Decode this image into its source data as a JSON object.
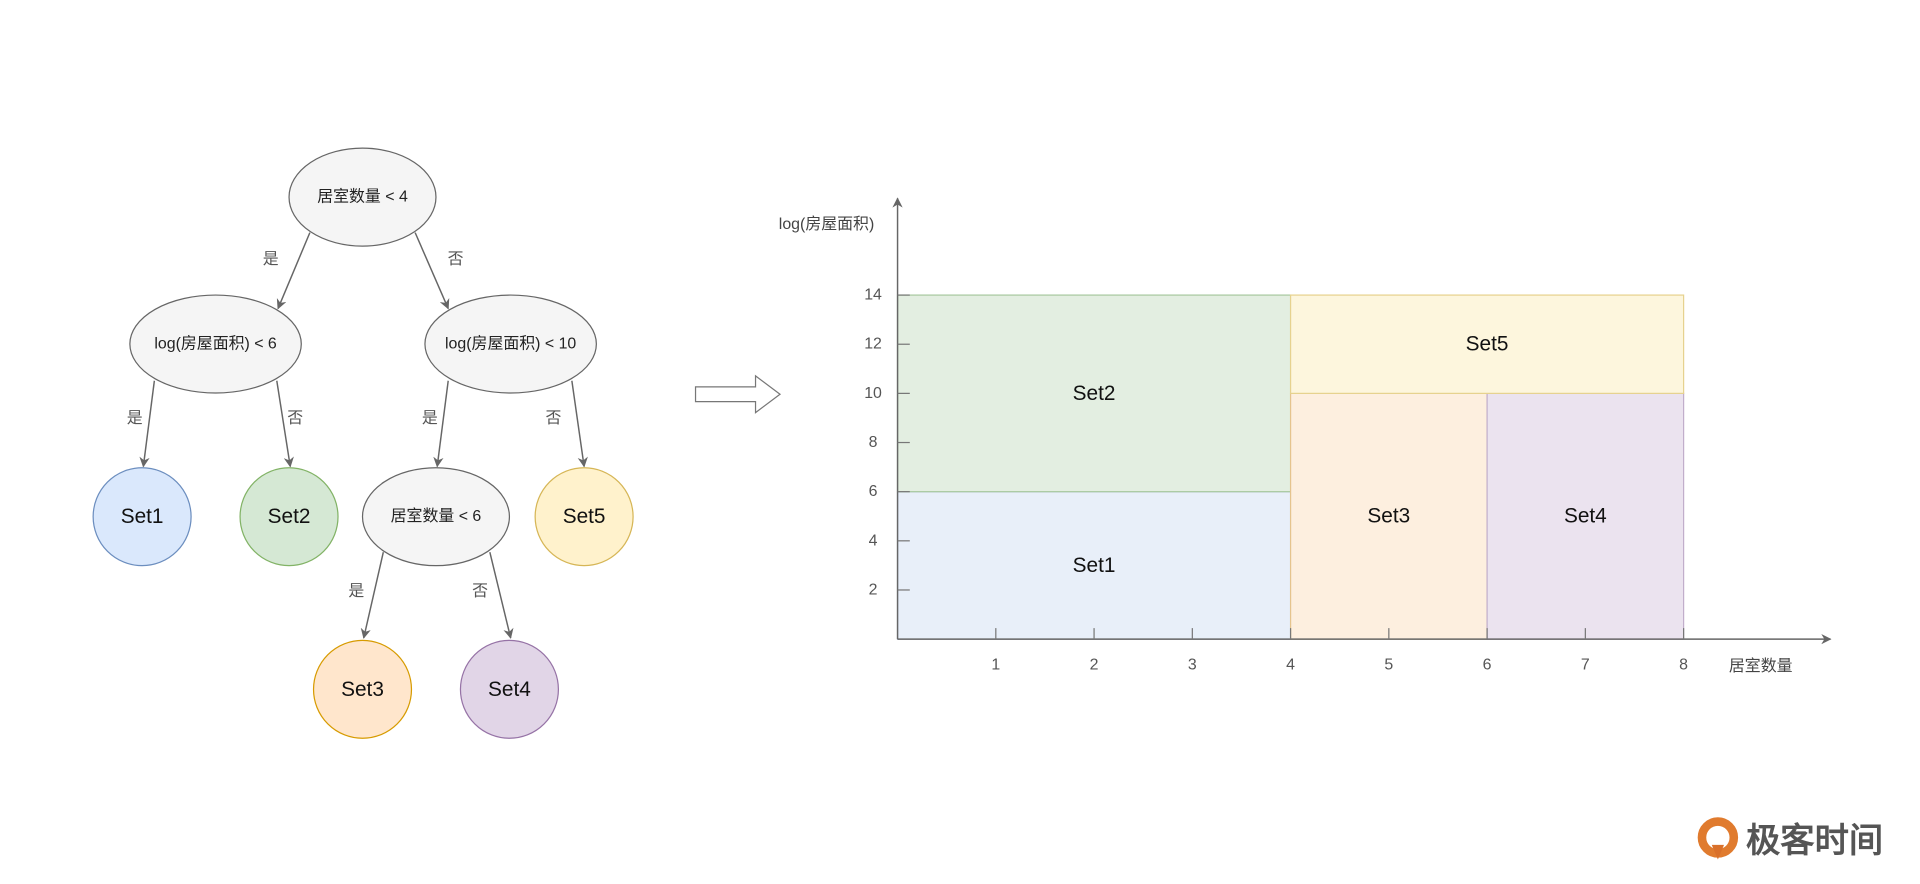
{
  "tree": {
    "nodes": [
      {
        "id": "root",
        "label": "居室数量 < 4",
        "kind": "decision"
      },
      {
        "id": "left",
        "label": "log(房屋面积) < 6",
        "kind": "decision"
      },
      {
        "id": "right",
        "label": "log(房屋面积) < 10",
        "kind": "decision"
      },
      {
        "id": "set1",
        "label": "Set1",
        "kind": "leaf",
        "fill": "#dae8fc",
        "stroke": "#6c8ebf"
      },
      {
        "id": "set2",
        "label": "Set2",
        "kind": "leaf",
        "fill": "#d5e8d4",
        "stroke": "#82b366"
      },
      {
        "id": "mid",
        "label": "居室数量 < 6",
        "kind": "decision"
      },
      {
        "id": "set5",
        "label": "Set5",
        "kind": "leaf",
        "fill": "#fff2cc",
        "stroke": "#d6b656"
      },
      {
        "id": "set3",
        "label": "Set3",
        "kind": "leaf",
        "fill": "#ffe6cc",
        "stroke": "#d79b00"
      },
      {
        "id": "set4",
        "label": "Set4",
        "kind": "leaf",
        "fill": "#e1d5e7",
        "stroke": "#9673a6"
      }
    ],
    "edges": [
      {
        "from": "root",
        "to": "left",
        "label": "是"
      },
      {
        "from": "root",
        "to": "right",
        "label": "否"
      },
      {
        "from": "left",
        "to": "set1",
        "label": "是"
      },
      {
        "from": "left",
        "to": "set2",
        "label": "否"
      },
      {
        "from": "right",
        "to": "mid",
        "label": "是"
      },
      {
        "from": "right",
        "to": "set5",
        "label": "否"
      },
      {
        "from": "mid",
        "to": "set3",
        "label": "是"
      },
      {
        "from": "mid",
        "to": "set4",
        "label": "否"
      }
    ],
    "decision_fill": "#f5f5f5",
    "decision_stroke": "#666666"
  },
  "transition_icon": "right-arrow-outline-icon",
  "chart_data": {
    "type": "partition",
    "xlabel": "居室数量",
    "ylabel": "log(房屋面积)",
    "xlim": [
      0,
      8
    ],
    "ylim": [
      0,
      14
    ],
    "xticks": [
      1,
      2,
      3,
      4,
      5,
      6,
      7,
      8
    ],
    "yticks": [
      2,
      4,
      6,
      8,
      10,
      12,
      14
    ],
    "regions": [
      {
        "label": "Set1",
        "x": [
          0,
          4
        ],
        "y": [
          0,
          6
        ],
        "fill": "#e8eff9",
        "stroke": "#9fb6d6"
      },
      {
        "label": "Set2",
        "x": [
          0,
          4
        ],
        "y": [
          6,
          14
        ],
        "fill": "#e3eee1",
        "stroke": "#a9c9a0"
      },
      {
        "label": "Set3",
        "x": [
          4,
          6
        ],
        "y": [
          0,
          10
        ],
        "fill": "#fdefdf",
        "stroke": "#e5c48e"
      },
      {
        "label": "Set4",
        "x": [
          6,
          8
        ],
        "y": [
          0,
          10
        ],
        "fill": "#ebe3ef",
        "stroke": "#c1aecb"
      },
      {
        "label": "Set5",
        "x": [
          4,
          8
        ],
        "y": [
          10,
          14
        ],
        "fill": "#fdf6dd",
        "stroke": "#e6d28f"
      }
    ]
  },
  "logo": {
    "text": "极客时间",
    "color": "#e07b2e"
  }
}
